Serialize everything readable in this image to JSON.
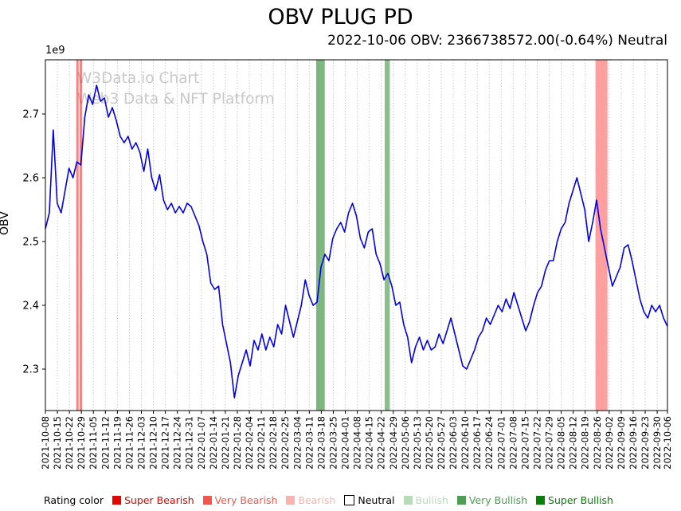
{
  "chart_data": {
    "type": "line",
    "title": "OBV PLUG PD",
    "subtitle": "2022-10-06 OBV: 2366738572.00(-0.64%) Neutral",
    "ylabel": "OBV",
    "xlabel": "",
    "offset_text": "1e9",
    "watermark": [
      "W3Data.io Chart",
      "Web3 Data & NFT Platform"
    ],
    "grid": "vertical dotted at each weekly tick",
    "ylim": [
      2.235,
      2.785
    ],
    "y_ticks": [
      2.3,
      2.4,
      2.5,
      2.6,
      2.7
    ],
    "x_range": [
      "2021-10-08",
      "2022-10-06"
    ],
    "x_encoding": "series values evenly spaced from x_range[0] to x_range[1], approx 3 points per week",
    "x_tick_labels": [
      "2021-10-08",
      "2021-10-15",
      "2021-10-22",
      "2021-10-29",
      "2021-11-05",
      "2021-11-12",
      "2021-11-19",
      "2021-11-26",
      "2021-12-03",
      "2021-12-10",
      "2021-12-17",
      "2021-12-24",
      "2021-12-31",
      "2022-01-07",
      "2022-01-14",
      "2022-01-21",
      "2022-01-28",
      "2022-02-04",
      "2022-02-11",
      "2022-02-18",
      "2022-02-25",
      "2022-03-04",
      "2022-03-11",
      "2022-03-18",
      "2022-03-25",
      "2022-04-01",
      "2022-04-08",
      "2022-04-15",
      "2022-04-22",
      "2022-04-29",
      "2022-05-06",
      "2022-05-13",
      "2022-05-20",
      "2022-05-27",
      "2022-06-03",
      "2022-06-10",
      "2022-06-17",
      "2022-06-24",
      "2022-07-01",
      "2022-07-08",
      "2022-07-15",
      "2022-07-22",
      "2022-07-29",
      "2022-08-05",
      "2022-08-12",
      "2022-08-19",
      "2022-08-26",
      "2022-09-02",
      "2022-09-09",
      "2022-09-16",
      "2022-09-23",
      "2022-09-30",
      "2022-10-06"
    ],
    "series": [
      {
        "name": "OBV",
        "color": "#0000ee",
        "unit": "1e9",
        "values": [
          2.52,
          2.545,
          2.675,
          2.56,
          2.545,
          2.58,
          2.615,
          2.6,
          2.625,
          2.62,
          2.695,
          2.73,
          2.715,
          2.745,
          2.72,
          2.725,
          2.695,
          2.71,
          2.69,
          2.665,
          2.655,
          2.665,
          2.645,
          2.655,
          2.64,
          2.61,
          2.645,
          2.6,
          2.58,
          2.605,
          2.565,
          2.55,
          2.56,
          2.545,
          2.555,
          2.545,
          2.56,
          2.555,
          2.54,
          2.525,
          2.5,
          2.48,
          2.435,
          2.425,
          2.43,
          2.37,
          2.34,
          2.31,
          2.255,
          2.29,
          2.31,
          2.33,
          2.305,
          2.345,
          2.33,
          2.355,
          2.33,
          2.35,
          2.335,
          2.37,
          2.355,
          2.4,
          2.375,
          2.35,
          2.375,
          2.4,
          2.44,
          2.415,
          2.4,
          2.405,
          2.46,
          2.48,
          2.47,
          2.505,
          2.52,
          2.53,
          2.515,
          2.545,
          2.56,
          2.54,
          2.505,
          2.49,
          2.515,
          2.52,
          2.48,
          2.465,
          2.44,
          2.45,
          2.43,
          2.4,
          2.405,
          2.37,
          2.35,
          2.31,
          2.335,
          2.35,
          2.33,
          2.345,
          2.33,
          2.335,
          2.355,
          2.34,
          2.36,
          2.38,
          2.355,
          2.33,
          2.305,
          2.3,
          2.315,
          2.33,
          2.35,
          2.36,
          2.38,
          2.37,
          2.385,
          2.4,
          2.39,
          2.41,
          2.395,
          2.42,
          2.4,
          2.38,
          2.36,
          2.375,
          2.4,
          2.42,
          2.43,
          2.455,
          2.47,
          2.47,
          2.5,
          2.52,
          2.53,
          2.56,
          2.58,
          2.6,
          2.575,
          2.55,
          2.5,
          2.53,
          2.565,
          2.52,
          2.49,
          2.46,
          2.43,
          2.445,
          2.46,
          2.49,
          2.495,
          2.47,
          2.44,
          2.41,
          2.39,
          2.38,
          2.4,
          2.39,
          2.4,
          2.38,
          2.367
        ]
      }
    ],
    "bands": [
      {
        "start": "2021-10-26",
        "end": "2021-10-27",
        "color": "#f03030",
        "opacity": 0.6
      },
      {
        "start": "2021-10-28",
        "end": "2021-10-29",
        "color": "#f03030",
        "opacity": 0.6
      },
      {
        "start": "2022-03-15",
        "end": "2022-03-20",
        "color": "#2e8b2e",
        "opacity": 0.62
      },
      {
        "start": "2022-04-24",
        "end": "2022-04-27",
        "color": "#2e8b2e",
        "opacity": 0.55
      },
      {
        "start": "2022-08-25",
        "end": "2022-09-01",
        "color": "#ff5050",
        "opacity": 0.55
      }
    ],
    "legend": {
      "position": "bottom",
      "title": "Rating color",
      "items": [
        {
          "label": "Super Bearish",
          "color": "#e10600",
          "text_color": "#e10600"
        },
        {
          "label": "Very Bearish",
          "color": "#f4564e",
          "text_color": "#f4564e"
        },
        {
          "label": "Bearish",
          "color": "#f9b4b0",
          "text_color": "#f9b4b0"
        },
        {
          "label": "Neutral",
          "color": "#ffffff",
          "text_color": "#000000",
          "border": "#000000"
        },
        {
          "label": "Bullish",
          "color": "#b8dcb8",
          "text_color": "#b8dcb8"
        },
        {
          "label": "Very Bullish",
          "color": "#4c9e53",
          "text_color": "#4c9e53"
        },
        {
          "label": "Super Bullish",
          "color": "#0a7d0a",
          "text_color": "#0a7d0a"
        }
      ]
    }
  }
}
